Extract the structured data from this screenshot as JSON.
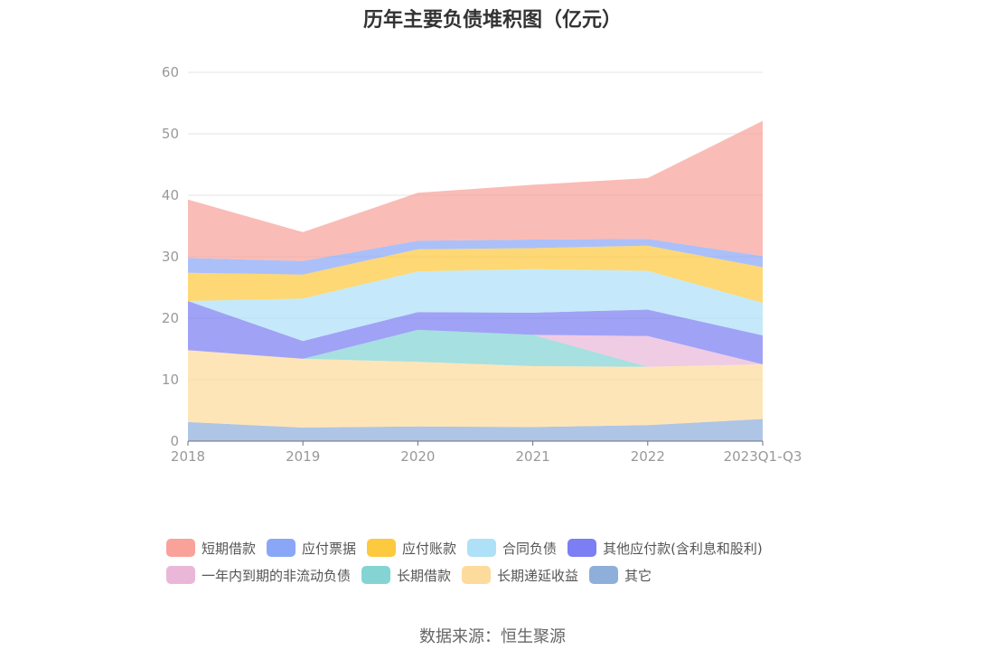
{
  "title": "历年主要负债堆积图（亿元）",
  "source": "数据来源：恒生聚源",
  "chart_data": {
    "type": "area",
    "stacked": true,
    "title": "历年主要负债堆积图（亿元）",
    "categories": [
      "2018",
      "2019",
      "2020",
      "2021",
      "2022",
      "2023Q1-Q3"
    ],
    "ylim": [
      0,
      60
    ],
    "yticks": [
      "0",
      "10",
      "20",
      "30",
      "40",
      "50",
      "60"
    ],
    "grid": true,
    "legend_position": "bottom",
    "series": [
      {
        "name": "其它",
        "color": "#8fafdb",
        "values": [
          3.1,
          2.2,
          2.4,
          2.3,
          2.6,
          3.6
        ]
      },
      {
        "name": "长期递延收益",
        "color": "#fddb9c",
        "values": [
          11.7,
          11.2,
          10.5,
          9.9,
          9.5,
          8.9
        ]
      },
      {
        "name": "长期借款",
        "color": "#84d4d4",
        "values": [
          0,
          0,
          5.2,
          5.1,
          0,
          0
        ]
      },
      {
        "name": "一年内到期的非流动负债",
        "color": "#eab7d9",
        "values": [
          0,
          0,
          0,
          0,
          5.0,
          0
        ]
      },
      {
        "name": "其他应付款(含利息和股利)",
        "color": "#7c7ef3",
        "values": [
          8.0,
          2.9,
          2.9,
          3.6,
          4.3,
          4.7
        ]
      },
      {
        "name": "合同负债",
        "color": "#aee0f8",
        "values": [
          0,
          6.9,
          6.6,
          7.1,
          6.3,
          5.3
        ]
      },
      {
        "name": "应付账款",
        "color": "#fcc93f",
        "values": [
          4.6,
          3.9,
          3.6,
          3.4,
          4.1,
          5.8
        ]
      },
      {
        "name": "应付票据",
        "color": "#8aa7f7",
        "values": [
          2.4,
          2.2,
          1.4,
          1.4,
          1.1,
          1.8
        ]
      },
      {
        "name": "短期借款",
        "color": "#f8a29a",
        "values": [
          9.5,
          4.7,
          7.8,
          8.9,
          9.9,
          22.0
        ]
      }
    ]
  },
  "legend": {
    "rows": [
      [
        {
          "label": "短期借款",
          "color": "#f8a29a"
        },
        {
          "label": "应付票据",
          "color": "#8aa7f7"
        },
        {
          "label": "应付账款",
          "color": "#fcc93f"
        },
        {
          "label": "合同负债",
          "color": "#aee0f8"
        },
        {
          "label": "其他应付款(含利息和股利)",
          "color": "#7c7ef3"
        }
      ],
      [
        {
          "label": "一年内到期的非流动负债",
          "color": "#eab7d9"
        },
        {
          "label": "长期借款",
          "color": "#84d4d4"
        },
        {
          "label": "长期递延收益",
          "color": "#fddb9c"
        },
        {
          "label": "其它",
          "color": "#8fafdb"
        }
      ]
    ]
  }
}
